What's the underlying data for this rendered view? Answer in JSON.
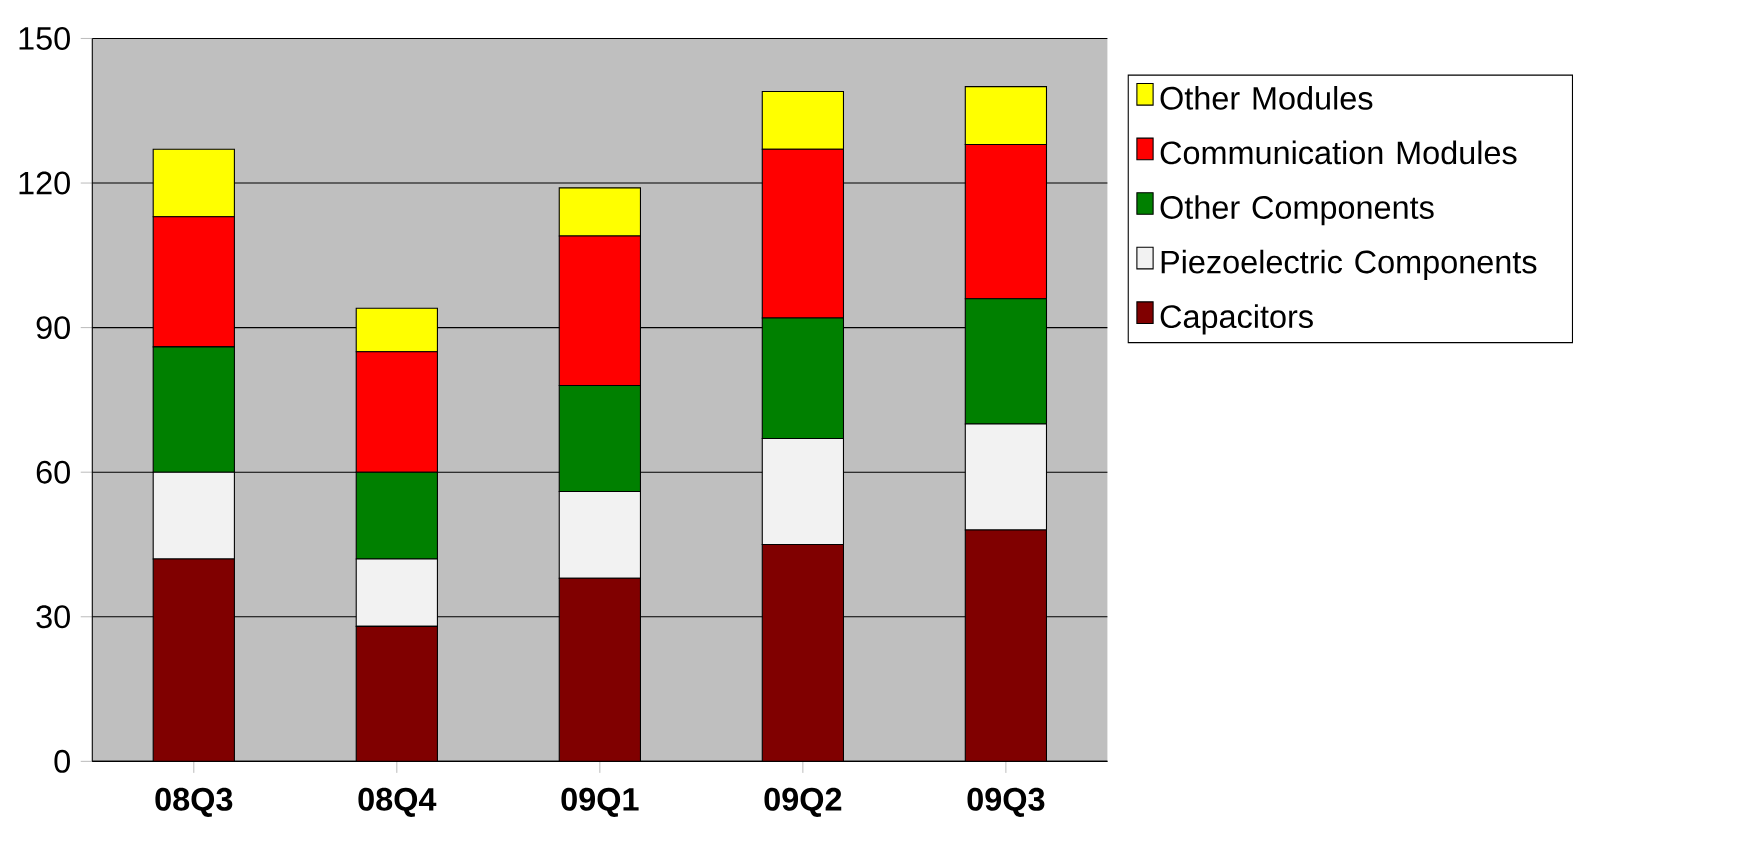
{
  "chart_data": {
    "type": "bar",
    "stacked": true,
    "categories": [
      "08Q3",
      "08Q4",
      "09Q1",
      "09Q2",
      "09Q3"
    ],
    "series": [
      {
        "name": "Capacitors",
        "color": "#800000",
        "values": [
          42,
          28,
          38,
          45,
          48
        ]
      },
      {
        "name": "Piezoelectric Components",
        "color": "#f2f2f2",
        "values": [
          18,
          14,
          18,
          22,
          22
        ]
      },
      {
        "name": "Other Components",
        "color": "#008000",
        "values": [
          26,
          18,
          22,
          25,
          26
        ]
      },
      {
        "name": "Communication Modules",
        "color": "#ff0000",
        "values": [
          27,
          25,
          31,
          35,
          32
        ]
      },
      {
        "name": "Other Modules",
        "color": "#ffff00",
        "values": [
          14,
          9,
          10,
          12,
          12
        ]
      }
    ],
    "ylim": [
      0,
      150
    ],
    "yticks": [
      0,
      30,
      60,
      90,
      120,
      150
    ],
    "grid": "y",
    "legend": "right"
  }
}
